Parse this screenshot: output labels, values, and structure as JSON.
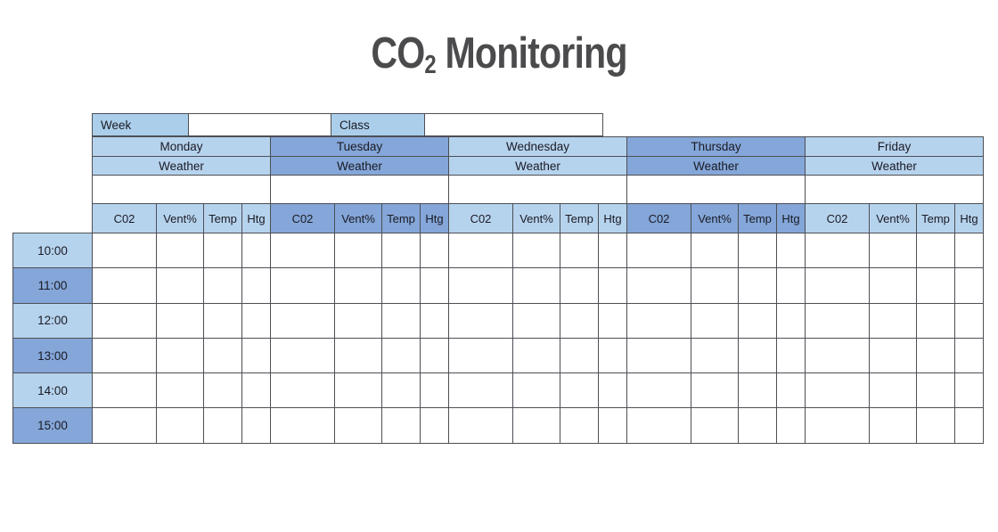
{
  "title": {
    "prefix": "CO",
    "subscript": "2",
    "suffix": " Monitoring"
  },
  "form": {
    "week_label": "Week",
    "week_value": "",
    "class_label": "Class",
    "class_value": ""
  },
  "days": [
    {
      "name": "Monday"
    },
    {
      "name": "Tuesday"
    },
    {
      "name": "Wednesday"
    },
    {
      "name": "Thursday"
    },
    {
      "name": "Friday"
    }
  ],
  "weather_label": "Weather",
  "columns": [
    "C02",
    "Vent%",
    "Temp",
    "Htg"
  ],
  "times": [
    "10:00",
    "11:00",
    "12:00",
    "13:00",
    "14:00",
    "15:00"
  ],
  "notes_values": [
    "",
    "",
    "",
    "",
    ""
  ],
  "grid_values": [
    [
      "",
      "",
      "",
      "",
      "",
      "",
      "",
      "",
      "",
      "",
      "",
      "",
      "",
      "",
      "",
      "",
      "",
      "",
      "",
      ""
    ],
    [
      "",
      "",
      "",
      "",
      "",
      "",
      "",
      "",
      "",
      "",
      "",
      "",
      "",
      "",
      "",
      "",
      "",
      "",
      "",
      ""
    ],
    [
      "",
      "",
      "",
      "",
      "",
      "",
      "",
      "",
      "",
      "",
      "",
      "",
      "",
      "",
      "",
      "",
      "",
      "",
      "",
      ""
    ],
    [
      "",
      "",
      "",
      "",
      "",
      "",
      "",
      "",
      "",
      "",
      "",
      "",
      "",
      "",
      "",
      "",
      "",
      "",
      "",
      ""
    ],
    [
      "",
      "",
      "",
      "",
      "",
      "",
      "",
      "",
      "",
      "",
      "",
      "",
      "",
      "",
      "",
      "",
      "",
      "",
      "",
      ""
    ],
    [
      "",
      "",
      "",
      "",
      "",
      "",
      "",
      "",
      "",
      "",
      "",
      "",
      "",
      "",
      "",
      "",
      "",
      "",
      "",
      ""
    ]
  ],
  "colors": {
    "light_blue": "#b6d3ed",
    "dark_blue": "#84a6d8",
    "label_blue": "#abcfeb",
    "border": "#4d4f55",
    "text": "#1a1a24",
    "title_gray": "#4b4b4d"
  }
}
